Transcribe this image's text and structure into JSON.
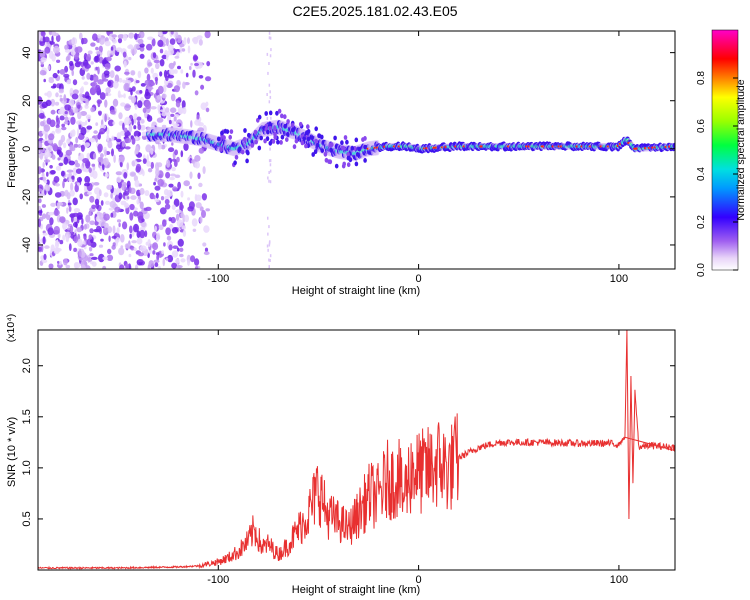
{
  "title": "C2E5.2025.181.02.43.E05",
  "chart_data": [
    {
      "type": "heatmap",
      "xlabel": "Height of straight line (km)",
      "ylabel": "Frequency (Hz)",
      "xlim": [
        -190,
        128
      ],
      "ylim": [
        -50,
        49
      ],
      "xticks": [
        -100,
        0,
        100
      ],
      "yticks": [
        -40,
        -20,
        0,
        20,
        40
      ],
      "grid": false,
      "colorbar": {
        "label": "Normalized spectral amplitude",
        "range": [
          0,
          1
        ],
        "ticks": [
          "0.0",
          "0.2",
          "0.4",
          "0.6",
          "0.8"
        ]
      },
      "ridge": {
        "x": [
          -135,
          -125,
          -115,
          -108,
          -100,
          -92,
          -85,
          -78,
          -70,
          -62,
          -55,
          -48,
          -40,
          -32,
          -25,
          -15,
          -5,
          0,
          20,
          50,
          80,
          100,
          104,
          108,
          128
        ],
        "freq": [
          6,
          6,
          5,
          4,
          2,
          0,
          2,
          8,
          9,
          7,
          4,
          1,
          -1,
          -2,
          0,
          1,
          1,
          0,
          1,
          1,
          1,
          1,
          4,
          0,
          1
        ]
      },
      "noise_region": {
        "x_from": -190,
        "x_to": -105
      }
    },
    {
      "type": "line",
      "xlabel": "Height of straight line (km)",
      "ylabel": "SNR (10 * v/v)",
      "exponent_label": "(x10⁴)",
      "xlim": [
        -190,
        128
      ],
      "ylim": [
        0,
        2.35
      ],
      "xticks": [
        -100,
        0,
        100
      ],
      "yticks": [
        "0.5",
        "1.0",
        "1.5",
        "2.0"
      ],
      "series": [
        {
          "color": "#e83030",
          "x": [
            -190,
            -150,
            -120,
            -110,
            -100,
            -95,
            -90,
            -85,
            -82,
            -78,
            -75,
            -70,
            -65,
            -60,
            -55,
            -52,
            -50,
            -46,
            -42,
            -38,
            -35,
            -30,
            -27,
            -24,
            -21,
            -18,
            -15,
            -12,
            -10,
            -8,
            -5,
            -3,
            0,
            5,
            10,
            15,
            20,
            30,
            40,
            60,
            80,
            95,
            100,
            103,
            104,
            105,
            106,
            107,
            108,
            110,
            115,
            128
          ],
          "y": [
            0.02,
            0.02,
            0.03,
            0.04,
            0.08,
            0.12,
            0.18,
            0.28,
            0.4,
            0.22,
            0.25,
            0.15,
            0.25,
            0.4,
            0.55,
            0.7,
            0.82,
            0.55,
            0.5,
            0.45,
            0.4,
            0.55,
            0.65,
            0.75,
            0.7,
            0.8,
            0.9,
            0.85,
            0.95,
            0.7,
            0.9,
            1.0,
            0.95,
            0.98,
            1.05,
            0.98,
            1.1,
            1.2,
            1.25,
            1.25,
            1.24,
            1.24,
            1.23,
            1.3,
            2.35,
            0.5,
            1.9,
            0.85,
            1.75,
            1.2,
            1.22,
            1.2
          ]
        }
      ]
    }
  ]
}
